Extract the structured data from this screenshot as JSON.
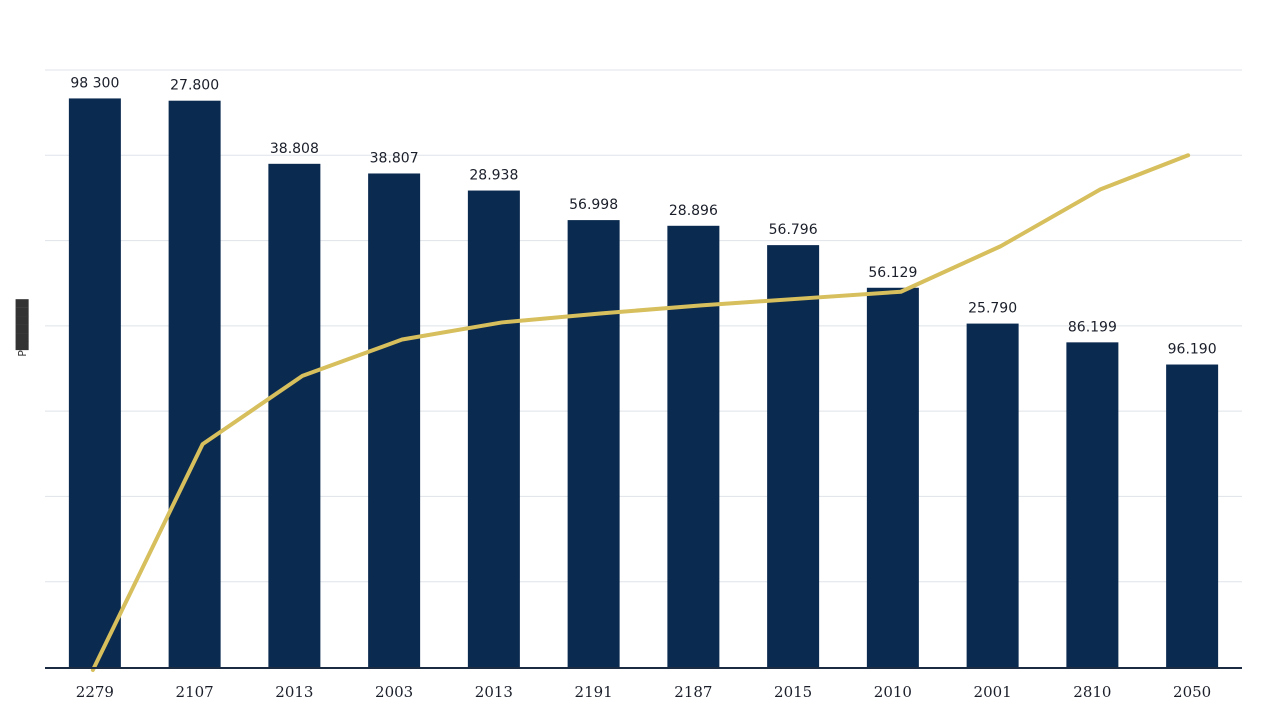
{
  "chart_data": {
    "type": "bar",
    "ylabel": "P██████",
    "categories": [
      "2279",
      "2107",
      "2013",
      "2003",
      "2013",
      "2191",
      "2187",
      "2015",
      "2010",
      "2001",
      "2810",
      "2050"
    ],
    "series": [
      {
        "type": "bar",
        "values": [
          100.0,
          99.6,
          88.5,
          86.8,
          83.8,
          78.6,
          77.6,
          74.2,
          66.7,
          60.4,
          57.1,
          53.2
        ],
        "data_labels": [
          "98 300",
          "27.800",
          "38.808",
          "38.807",
          "28.938",
          "56.998",
          "28.896",
          "56.796",
          "56.129",
          "25.790",
          "86.199",
          "96.190"
        ],
        "color": "#0b2a4f"
      },
      {
        "type": "line",
        "values": [
          -1.0,
          39.2,
          51.2,
          57.6,
          60.6,
          62.2,
          63.6,
          64.8,
          66.0,
          74.0,
          84.0,
          90.0
        ],
        "color": "#d6bf5c"
      }
    ],
    "ylim": [
      0,
      105
    ],
    "grid": true,
    "legend": "none"
  }
}
